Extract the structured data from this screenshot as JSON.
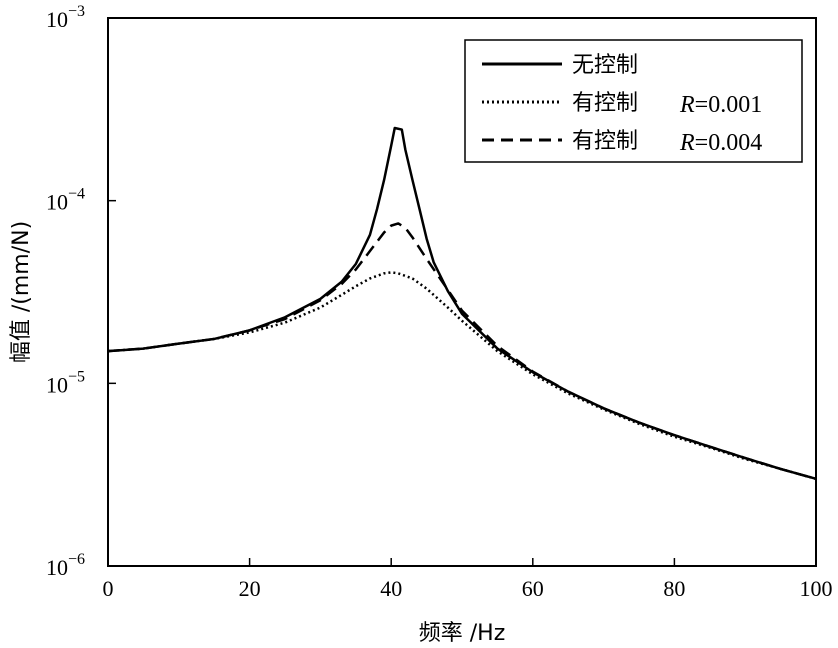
{
  "chart_data": {
    "type": "line",
    "xlabel": "频率 /Hz",
    "ylabel": "幅值 /(mm/N)",
    "xlim": [
      0,
      100
    ],
    "ylim": [
      1e-06,
      0.001
    ],
    "y_scale": "log",
    "grid": false,
    "legend_position": "top-right",
    "x_ticks": [
      "0",
      "20",
      "40",
      "60",
      "80",
      "100"
    ],
    "y_ticks": [
      {
        "value": 1e-06,
        "base": "10",
        "exp": "−6"
      },
      {
        "value": 1e-05,
        "base": "10",
        "exp": "−5"
      },
      {
        "value": 0.0001,
        "base": "10",
        "exp": "−4"
      },
      {
        "value": 0.001,
        "base": "10",
        "exp": "−3"
      }
    ],
    "series": [
      {
        "name": "无控制",
        "r_label": "",
        "style": "solid",
        "points": [
          [
            0,
            1.5e-05
          ],
          [
            5,
            1.55e-05
          ],
          [
            10,
            1.65e-05
          ],
          [
            15,
            1.75e-05
          ],
          [
            20,
            1.95e-05
          ],
          [
            25,
            2.3e-05
          ],
          [
            30,
            2.9e-05
          ],
          [
            33,
            3.6e-05
          ],
          [
            35,
            4.5e-05
          ],
          [
            37,
            6.5e-05
          ],
          [
            38,
            9e-05
          ],
          [
            39,
            0.00013
          ],
          [
            40,
            0.0002
          ],
          [
            40.5,
            0.00025
          ],
          [
            41.5,
            0.000245
          ],
          [
            42,
            0.00019
          ],
          [
            43,
            0.00013
          ],
          [
            44,
            9e-05
          ],
          [
            45,
            6.2e-05
          ],
          [
            46,
            4.6e-05
          ],
          [
            48,
            3.2e-05
          ],
          [
            50,
            2.4e-05
          ],
          [
            55,
            1.55e-05
          ],
          [
            60,
            1.15e-05
          ],
          [
            65,
            9e-06
          ],
          [
            70,
            7.3e-06
          ],
          [
            75,
            6.1e-06
          ],
          [
            80,
            5.2e-06
          ],
          [
            85,
            4.5e-06
          ],
          [
            90,
            3.9e-06
          ],
          [
            95,
            3.4e-06
          ],
          [
            100,
            3e-06
          ]
        ]
      },
      {
        "name": "有控制",
        "r_label": "0.001",
        "style": "dotted",
        "points": [
          [
            0,
            1.5e-05
          ],
          [
            5,
            1.55e-05
          ],
          [
            10,
            1.65e-05
          ],
          [
            15,
            1.75e-05
          ],
          [
            20,
            1.9e-05
          ],
          [
            25,
            2.15e-05
          ],
          [
            30,
            2.6e-05
          ],
          [
            33,
            3.05e-05
          ],
          [
            35,
            3.4e-05
          ],
          [
            37,
            3.75e-05
          ],
          [
            39,
            4e-05
          ],
          [
            40,
            4.05e-05
          ],
          [
            41,
            4e-05
          ],
          [
            43,
            3.75e-05
          ],
          [
            45,
            3.3e-05
          ],
          [
            48,
            2.6e-05
          ],
          [
            50,
            2.2e-05
          ],
          [
            55,
            1.5e-05
          ],
          [
            60,
            1.12e-05
          ],
          [
            65,
            8.8e-06
          ],
          [
            70,
            7.2e-06
          ],
          [
            75,
            6e-06
          ],
          [
            80,
            5.1e-06
          ],
          [
            85,
            4.45e-06
          ],
          [
            90,
            3.85e-06
          ],
          [
            95,
            3.4e-06
          ],
          [
            100,
            3e-06
          ]
        ]
      },
      {
        "name": "有控制",
        "r_label": "0.004",
        "style": "dashed",
        "points": [
          [
            0,
            1.5e-05
          ],
          [
            5,
            1.55e-05
          ],
          [
            10,
            1.65e-05
          ],
          [
            15,
            1.75e-05
          ],
          [
            20,
            1.95e-05
          ],
          [
            25,
            2.25e-05
          ],
          [
            30,
            2.85e-05
          ],
          [
            33,
            3.5e-05
          ],
          [
            35,
            4.2e-05
          ],
          [
            37,
            5.3e-05
          ],
          [
            39,
            6.7e-05
          ],
          [
            40,
            7.3e-05
          ],
          [
            41,
            7.5e-05
          ],
          [
            42,
            7.1e-05
          ],
          [
            43,
            6.3e-05
          ],
          [
            45,
            4.8e-05
          ],
          [
            47,
            3.7e-05
          ],
          [
            50,
            2.5e-05
          ],
          [
            55,
            1.6e-05
          ],
          [
            60,
            1.16e-05
          ],
          [
            65,
            9e-06
          ],
          [
            70,
            7.3e-06
          ],
          [
            75,
            6.1e-06
          ],
          [
            80,
            5.2e-06
          ],
          [
            85,
            4.5e-06
          ],
          [
            90,
            3.9e-06
          ],
          [
            95,
            3.4e-06
          ],
          [
            100,
            3e-06
          ]
        ]
      }
    ]
  }
}
